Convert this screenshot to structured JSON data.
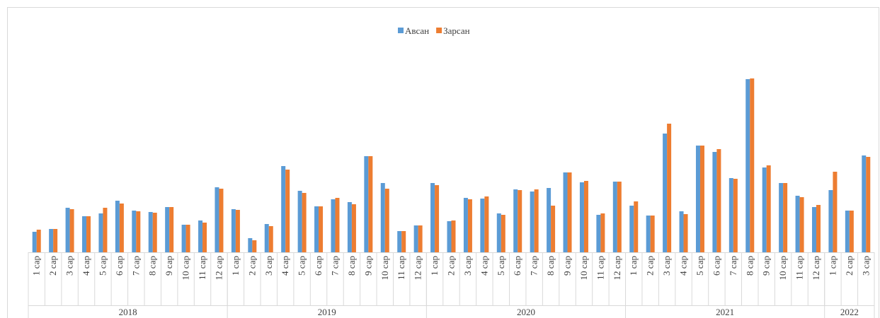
{
  "chart_data": {
    "type": "bar",
    "groups": [
      {
        "label": "2018",
        "categories": [
          "1 сар",
          "2 сар",
          "3 сар",
          "4 сар",
          "5 сар",
          "6 сар",
          "7 сар",
          "8 сар",
          "9 сар",
          "10 сар",
          "11 сар",
          "12 сар"
        ]
      },
      {
        "label": "2019",
        "categories": [
          "1 сар",
          "2 сар",
          "3 сар",
          "4 сар",
          "5 сар",
          "6 сар",
          "7 сар",
          "8 сар",
          "9 сар",
          "10 сар",
          "11 сар",
          "12 сар"
        ]
      },
      {
        "label": "2020",
        "categories": [
          "1 сар",
          "2 сар",
          "3 сар",
          "4 сар",
          "5 сар",
          "6 сар",
          "7 сар",
          "8 сар",
          "9 сар",
          "10 сар",
          "11 сар",
          "12 сар"
        ]
      },
      {
        "label": "2021",
        "categories": [
          "1 сар",
          "2 сар",
          "3 сар",
          "4 сар",
          "5 сар",
          "6 сар",
          "7 сар",
          "8 сар",
          "9 сар",
          "10 сар",
          "11 сар",
          "12 сар"
        ]
      },
      {
        "label": "2022",
        "categories": [
          "1 сар",
          "2 сар",
          "3 сар"
        ]
      }
    ],
    "series": [
      {
        "name": "Авсан",
        "color": "#5b9bd5",
        "values": [
          29,
          33,
          63,
          51,
          55,
          73,
          59,
          57,
          64,
          39,
          45,
          92,
          61,
          20,
          40,
          122,
          87,
          65,
          75,
          71,
          136,
          98,
          30,
          38,
          98,
          44,
          77,
          76,
          55,
          89,
          86,
          91,
          113,
          99,
          53,
          100,
          66,
          52,
          168,
          58,
          151,
          142,
          105,
          245,
          120,
          98,
          80,
          64,
          88,
          59,
          137
        ]
      },
      {
        "name": "Зарсан",
        "color": "#ed7d31",
        "values": [
          32,
          33,
          61,
          51,
          63,
          69,
          58,
          56,
          64,
          39,
          42,
          90,
          60,
          17,
          37,
          117,
          84,
          65,
          77,
          68,
          136,
          90,
          30,
          38,
          95,
          45,
          75,
          79,
          53,
          88,
          89,
          66,
          113,
          101,
          55,
          100,
          72,
          52,
          182,
          54,
          151,
          146,
          104,
          246,
          123,
          98,
          78,
          67,
          114,
          59,
          135
        ]
      }
    ],
    "ylim": [
      0,
      260
    ],
    "legend": "top"
  }
}
